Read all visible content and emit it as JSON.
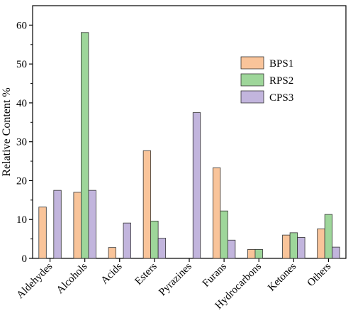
{
  "chart_data": {
    "type": "bar",
    "title": "",
    "xlabel": "",
    "ylabel": "Relative Content %",
    "ylim": [
      0,
      65
    ],
    "yticks": [
      0,
      10,
      20,
      30,
      40,
      50,
      60
    ],
    "grid": false,
    "legend_position": "top-right",
    "categories": [
      "Aldehydes",
      "Alcohols",
      "Acids",
      "Esters",
      "Pyrazines",
      "Furans",
      "Hydrocarbons",
      "Ketones",
      "Others"
    ],
    "series": [
      {
        "name": "BPS1",
        "color": "#F9C49A",
        "values": [
          13.2,
          17.0,
          2.8,
          27.7,
          0,
          23.3,
          2.3,
          6.0,
          7.6
        ]
      },
      {
        "name": "RPS2",
        "color": "#9ED69A",
        "values": [
          0,
          58.1,
          0,
          9.6,
          0,
          12.2,
          2.3,
          6.6,
          11.3
        ]
      },
      {
        "name": "CPS3",
        "color": "#C2B5DD",
        "values": [
          17.5,
          17.5,
          9.1,
          5.2,
          37.5,
          4.7,
          0,
          5.4,
          2.9
        ]
      }
    ]
  }
}
